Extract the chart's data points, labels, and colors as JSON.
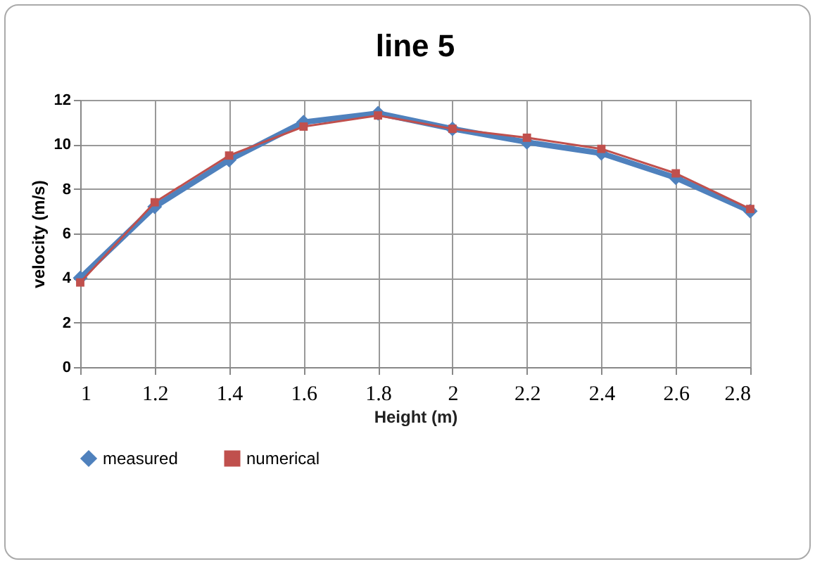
{
  "chart_data": {
    "type": "line",
    "title": "line 5",
    "xlabel": "Height (m)",
    "ylabel": "velocity (m/s)",
    "x": [
      1,
      1.2,
      1.4,
      1.6,
      1.8,
      2,
      2.2,
      2.4,
      2.6,
      2.8
    ],
    "xlim": [
      1,
      2.8
    ],
    "xticks": [
      1,
      1.2,
      1.4,
      1.6,
      1.8,
      2,
      2.2,
      2.4,
      2.6,
      2.8
    ],
    "ylim": [
      0,
      12
    ],
    "yticks": [
      0,
      2,
      4,
      6,
      8,
      10,
      12
    ],
    "grid": true,
    "legend": "bottom",
    "series": [
      {
        "name": "measured",
        "color": "#4f81bd",
        "marker": "diamond",
        "values": [
          4.0,
          7.2,
          9.3,
          11.0,
          11.4,
          10.7,
          10.1,
          9.6,
          8.5,
          7.0
        ]
      },
      {
        "name": "numerical",
        "color": "#c0504d",
        "marker": "square",
        "values": [
          3.8,
          7.4,
          9.5,
          10.8,
          11.3,
          10.7,
          10.3,
          9.8,
          8.7,
          7.1
        ]
      }
    ]
  }
}
